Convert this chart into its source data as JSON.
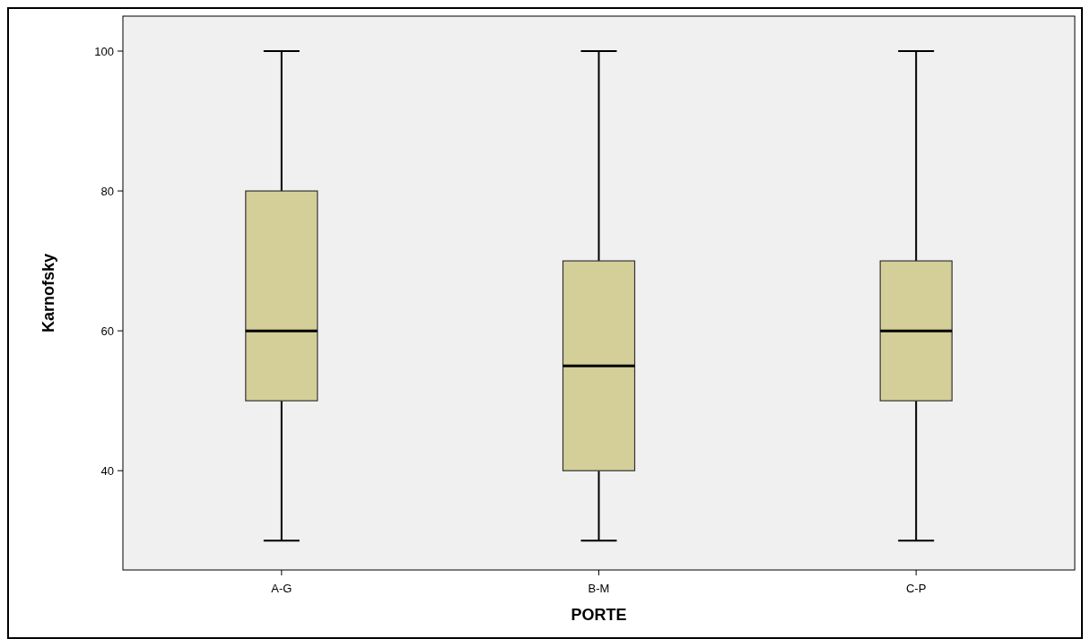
{
  "chart_data": {
    "type": "box",
    "xlabel": "PORTE",
    "ylabel": "Karnofsky",
    "categories": [
      "A-G",
      "B-M",
      "C-P"
    ],
    "color": "#d4cf99",
    "ylim": [
      25.8,
      105
    ],
    "yticks": [
      40,
      60,
      80,
      100
    ],
    "grid": false,
    "boxes": [
      {
        "low": 30,
        "q1": 50,
        "median": 60,
        "q3": 80,
        "high": 100
      },
      {
        "low": 30,
        "q1": 40,
        "median": 55,
        "q3": 70,
        "high": 100
      },
      {
        "low": 30,
        "q1": 50,
        "median": 60,
        "q3": 70,
        "high": 100
      }
    ]
  }
}
